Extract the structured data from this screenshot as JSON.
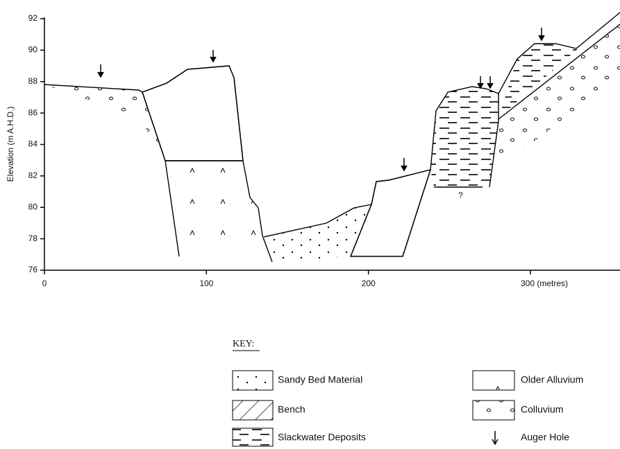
{
  "axes": {
    "y_label": "Elevation (m A.H.D.)",
    "y_ticks": [
      76,
      78,
      80,
      82,
      84,
      86,
      88,
      90,
      92
    ],
    "x_ticks": [
      0,
      100,
      200,
      {
        "value": 300,
        "label": "300 (metres)"
      }
    ]
  },
  "annotation": "?",
  "key": {
    "title": "KEY:",
    "items": [
      "Sandy Bed Material",
      "Older Alluvium",
      "Bench",
      "Colluvium",
      "Slackwater Deposits",
      "Auger Hole"
    ]
  }
}
